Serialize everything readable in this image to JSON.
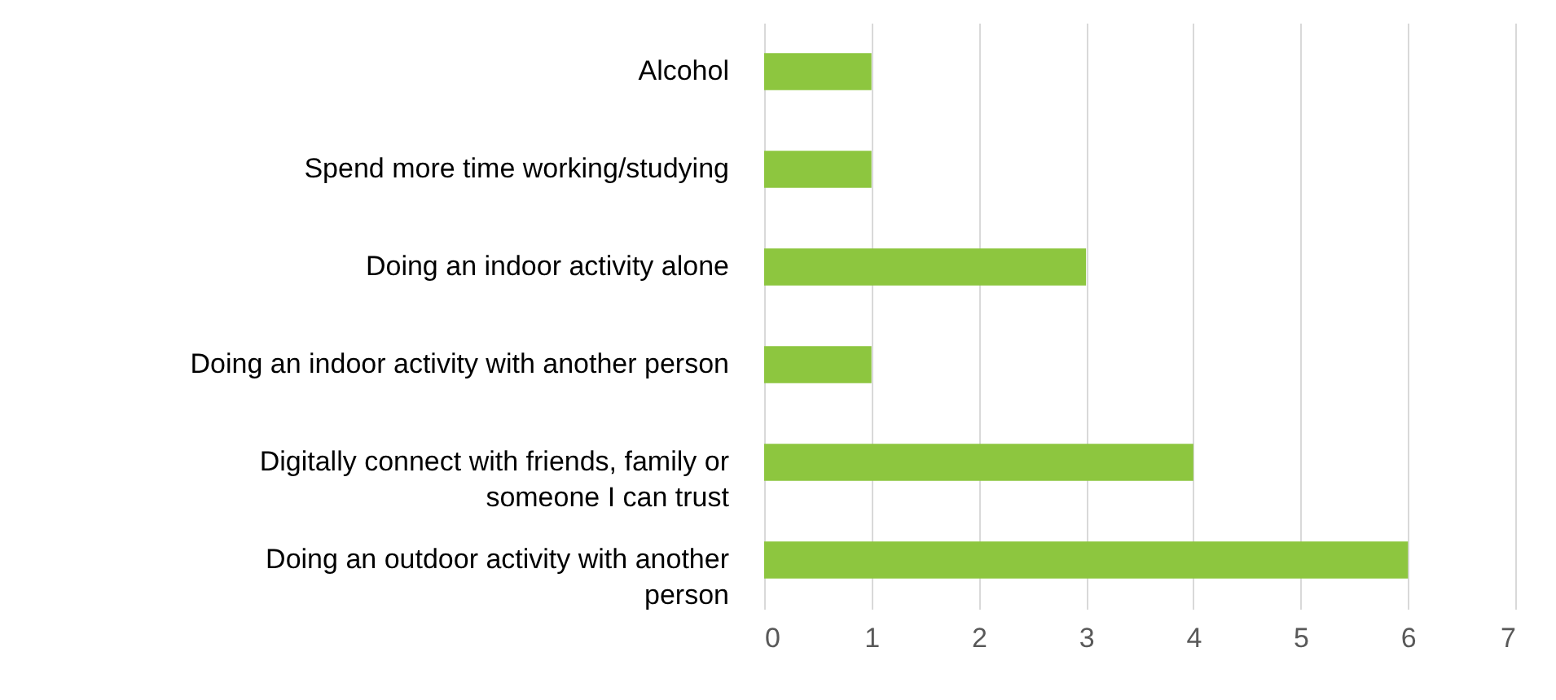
{
  "chart_data": {
    "type": "bar",
    "orientation": "horizontal",
    "categories": [
      "Alcohol",
      "Spend more time working/studying",
      "Doing an indoor activity alone",
      "Doing an indoor activity with another person",
      "Digitally connect with friends, family or someone I can trust",
      "Doing an outdoor activity with another person"
    ],
    "values": [
      1,
      1,
      3,
      1,
      4,
      6
    ],
    "color": "#8dc63f",
    "xlim": [
      0,
      7
    ],
    "xticks": [
      0,
      1,
      2,
      3,
      4,
      5,
      6,
      7
    ],
    "grid": "x"
  }
}
